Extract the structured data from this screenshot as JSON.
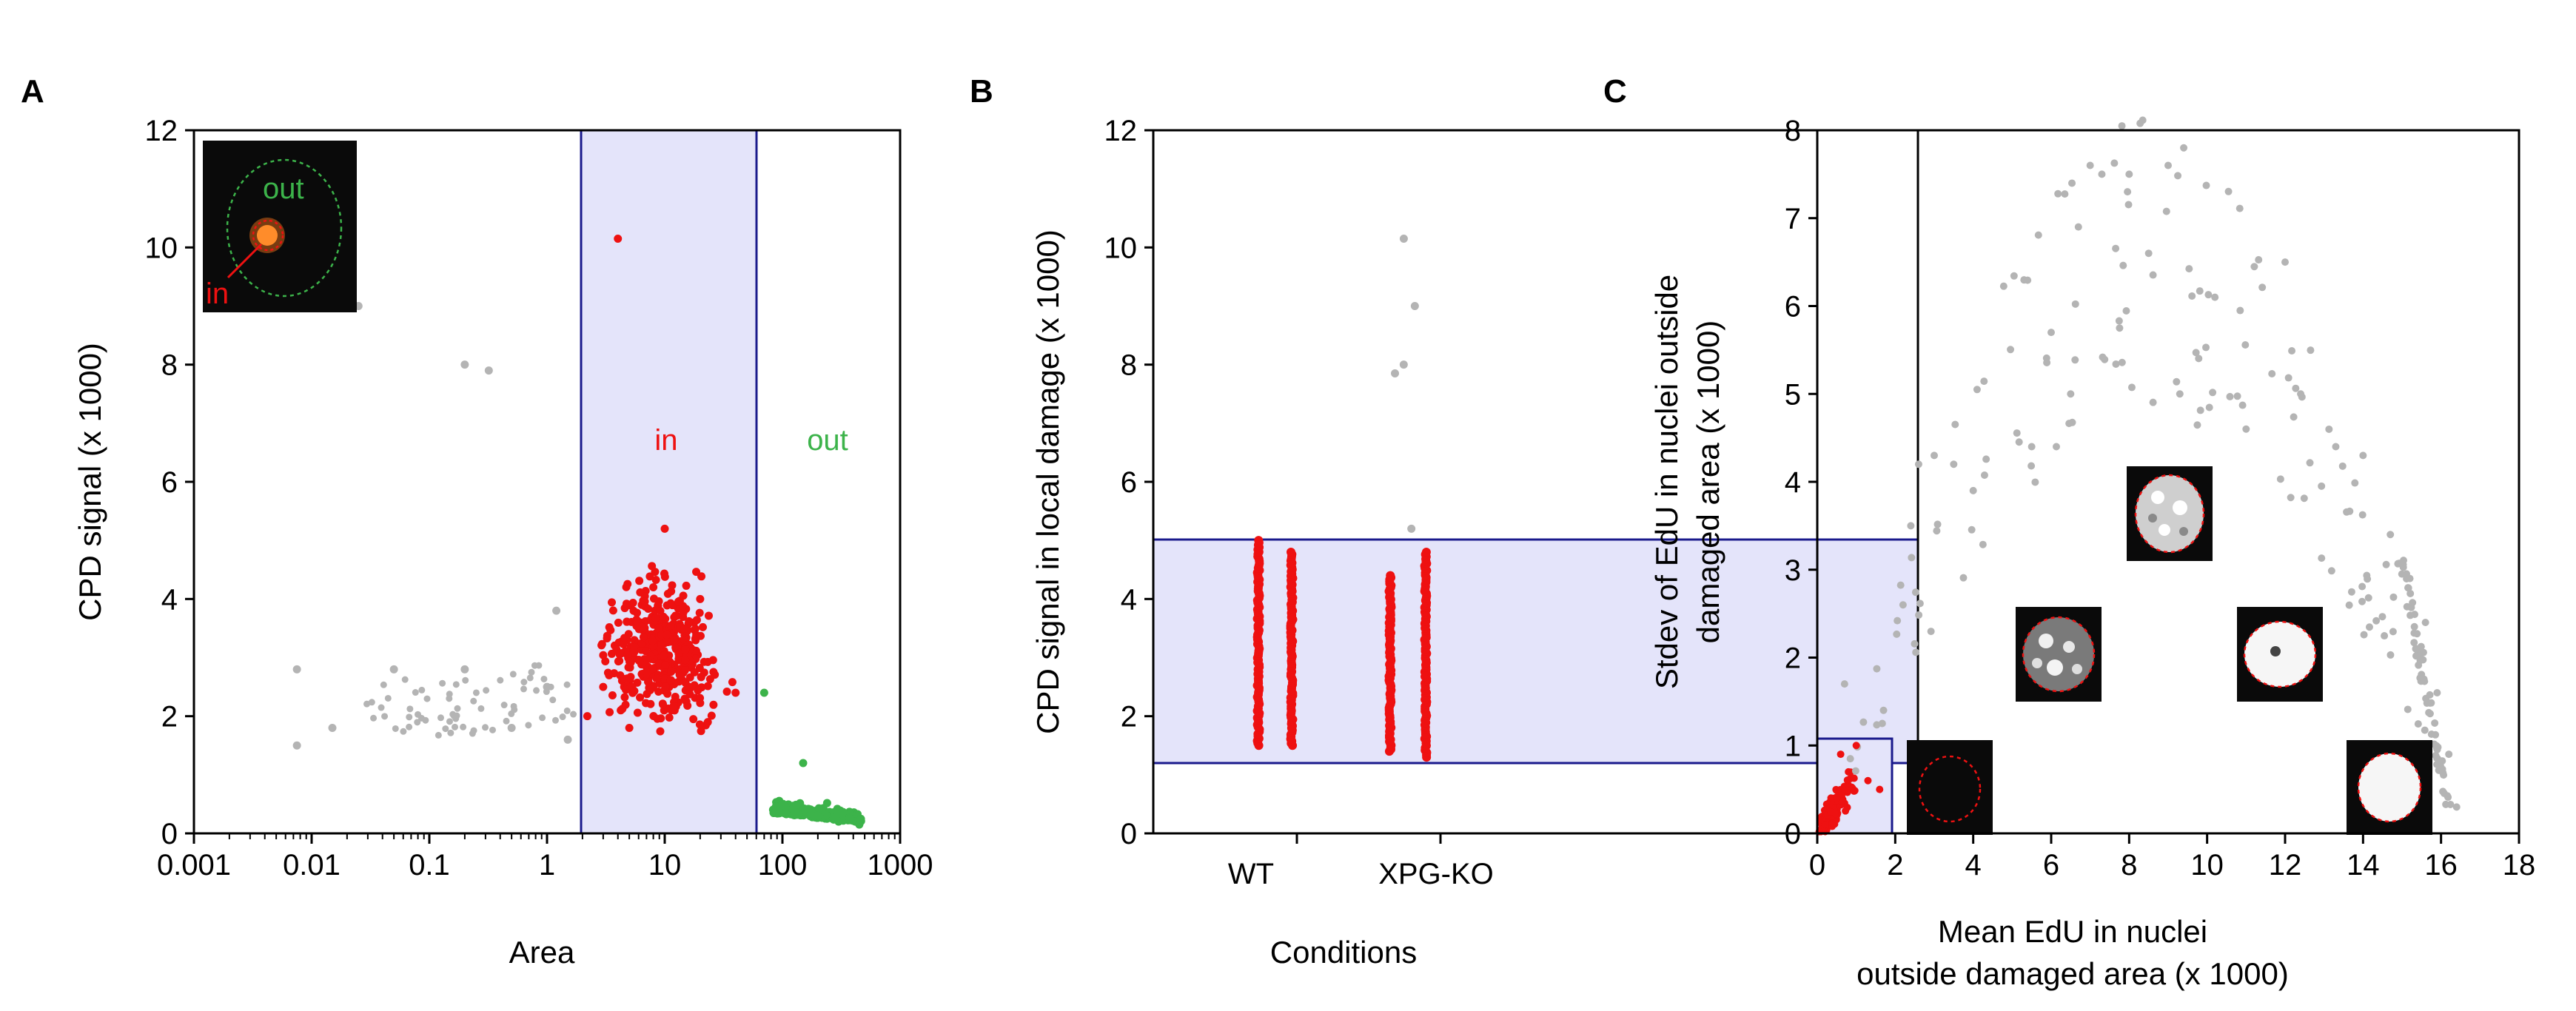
{
  "panels": {
    "A": {
      "label": "A",
      "xlabel": "Area",
      "ylabel": "CPD signal (x 1000)",
      "xticks": [
        "0.001",
        "0.01",
        "0.1",
        "1",
        "10",
        "100",
        "1000"
      ],
      "yticks": [
        "0",
        "2",
        "4",
        "6",
        "8",
        "10",
        "12"
      ],
      "annotations": {
        "in": "in",
        "out": "out"
      },
      "inset_labels": {
        "out": "out",
        "in": "in"
      }
    },
    "B": {
      "label": "B",
      "xlabel": "Conditions",
      "ylabel": "CPD signal in local damage (x 1000)",
      "yticks": [
        "0",
        "2",
        "4",
        "6",
        "8",
        "10",
        "12"
      ],
      "categories": [
        "WT",
        "XPG-KO"
      ]
    },
    "C": {
      "label": "C",
      "xlabel_line1": "Mean EdU in nuclei",
      "xlabel_line2": "outside damaged area (x 1000)",
      "ylabel_line1": "Stdev of EdU in nuclei outside",
      "ylabel_line2": "damaged area (x 1000)",
      "xticks": [
        "0",
        "2",
        "4",
        "6",
        "8",
        "10",
        "12",
        "14",
        "16",
        "18"
      ],
      "yticks": [
        "0",
        "1",
        "2",
        "3",
        "4",
        "5",
        "6",
        "7",
        "8"
      ]
    }
  },
  "colors": {
    "in": "#ee1111",
    "out": "#3cb34a",
    "excluded": "#b4b4b4",
    "selection_fill": "#e4e4fa",
    "selection_border": "#1a1a8c"
  },
  "chart_data": [
    {
      "panel": "A",
      "type": "scatter",
      "xscale": "log",
      "xlim": [
        0.001,
        1000
      ],
      "ylim": [
        0,
        12
      ],
      "selection": {
        "x": [
          1.9,
          58
        ]
      },
      "series": [
        {
          "name": "in",
          "points_sample": [
            [
              4,
              10.15
            ],
            [
              10,
              5.2
            ],
            [
              8,
              4.2
            ],
            [
              3,
              2.5
            ],
            [
              12,
              3.3
            ],
            [
              20,
              4.0
            ],
            [
              40,
              2.4
            ],
            [
              2.2,
              2.0
            ],
            [
              5,
              1.8
            ]
          ]
        },
        {
          "name": "out",
          "points_sample": [
            [
              70,
              2.4
            ],
            [
              150,
              1.2
            ],
            [
              100,
              0.5
            ],
            [
              200,
              0.3
            ],
            [
              300,
              0.2
            ],
            [
              450,
              0.15
            ]
          ]
        },
        {
          "points_sample": [
            [
              0.0075,
              2.8
            ],
            [
              0.0075,
              1.5
            ],
            [
              0.015,
              1.8
            ],
            [
              0.025,
              9.0
            ],
            [
              0.05,
              2.8
            ],
            [
              0.2,
              8.0
            ],
            [
              0.32,
              7.9
            ],
            [
              0.2,
              2.8
            ],
            [
              0.5,
              1.8
            ],
            [
              1.0,
              2.5
            ],
            [
              1.2,
              3.8
            ],
            [
              1.5,
              1.6
            ]
          ]
        }
      ]
    },
    {
      "panel": "B",
      "type": "scatter",
      "categories": [
        "WT",
        "XPG-KO"
      ],
      "ylim": [
        0,
        12
      ],
      "selection": {
        "y": [
          1.2,
          5.0
        ]
      },
      "series": [
        {
          "name": "WT",
          "red_columns": [
            {
              "y_min": 1.5,
              "y_max": 5.0
            },
            {
              "y_min": 1.5,
              "y_max": 4.8
            }
          ],
          "grey_points": []
        },
        {
          "name": "XPG-KO",
          "red_columns": [
            {
              "y_min": 1.4,
              "y_max": 4.4
            },
            {
              "y_min": 1.3,
              "y_max": 4.8
            }
          ],
          "grey_points": [
            10.15,
            9.0,
            8.0,
            7.85,
            5.2
          ]
        }
      ]
    },
    {
      "panel": "C",
      "type": "scatter",
      "xlim": [
        0,
        18
      ],
      "ylim": [
        0,
        8
      ],
      "selection": {
        "x": [
          0,
          1.9
        ],
        "y": [
          0,
          1.1
        ]
      },
      "series": [
        {
          "name": "in",
          "points_sample": [
            [
              0.2,
              0.1
            ],
            [
              0.5,
              0.4
            ],
            [
              0.8,
              0.7
            ],
            [
              1.0,
              1.0
            ],
            [
              0.6,
              0.9
            ],
            [
              1.3,
              0.6
            ],
            [
              1.6,
              0.5
            ]
          ]
        },
        {
          "points_sample": [
            [
              0.7,
              1.7
            ],
            [
              1.7,
              1.4
            ],
            [
              2.2,
              2.6
            ],
            [
              2.4,
              3.5
            ],
            [
              2.6,
              4.2
            ],
            [
              3.0,
              4.3
            ],
            [
              3.5,
              4.2
            ],
            [
              4.0,
              3.9
            ],
            [
              5.5,
              4.4
            ],
            [
              6.0,
              5.7
            ],
            [
              6.5,
              5.0
            ],
            [
              7.0,
              7.6
            ],
            [
              7.3,
              7.5
            ],
            [
              8.0,
              7.5
            ],
            [
              8.5,
              6.6
            ],
            [
              9.0,
              7.6
            ],
            [
              9.4,
              7.8
            ],
            [
              9.3,
              5.0
            ],
            [
              10.2,
              6.1
            ],
            [
              11.0,
              4.6
            ],
            [
              12.0,
              6.5
            ],
            [
              12.4,
              5.0
            ],
            [
              13.3,
              4.4
            ],
            [
              14.0,
              4.3
            ],
            [
              14.7,
              3.4
            ],
            [
              15.2,
              2.9
            ],
            [
              15.6,
              2.4
            ],
            [
              15.9,
              1.6
            ],
            [
              16.2,
              0.9
            ],
            [
              16.4,
              0.3
            ]
          ]
        }
      ]
    }
  ]
}
